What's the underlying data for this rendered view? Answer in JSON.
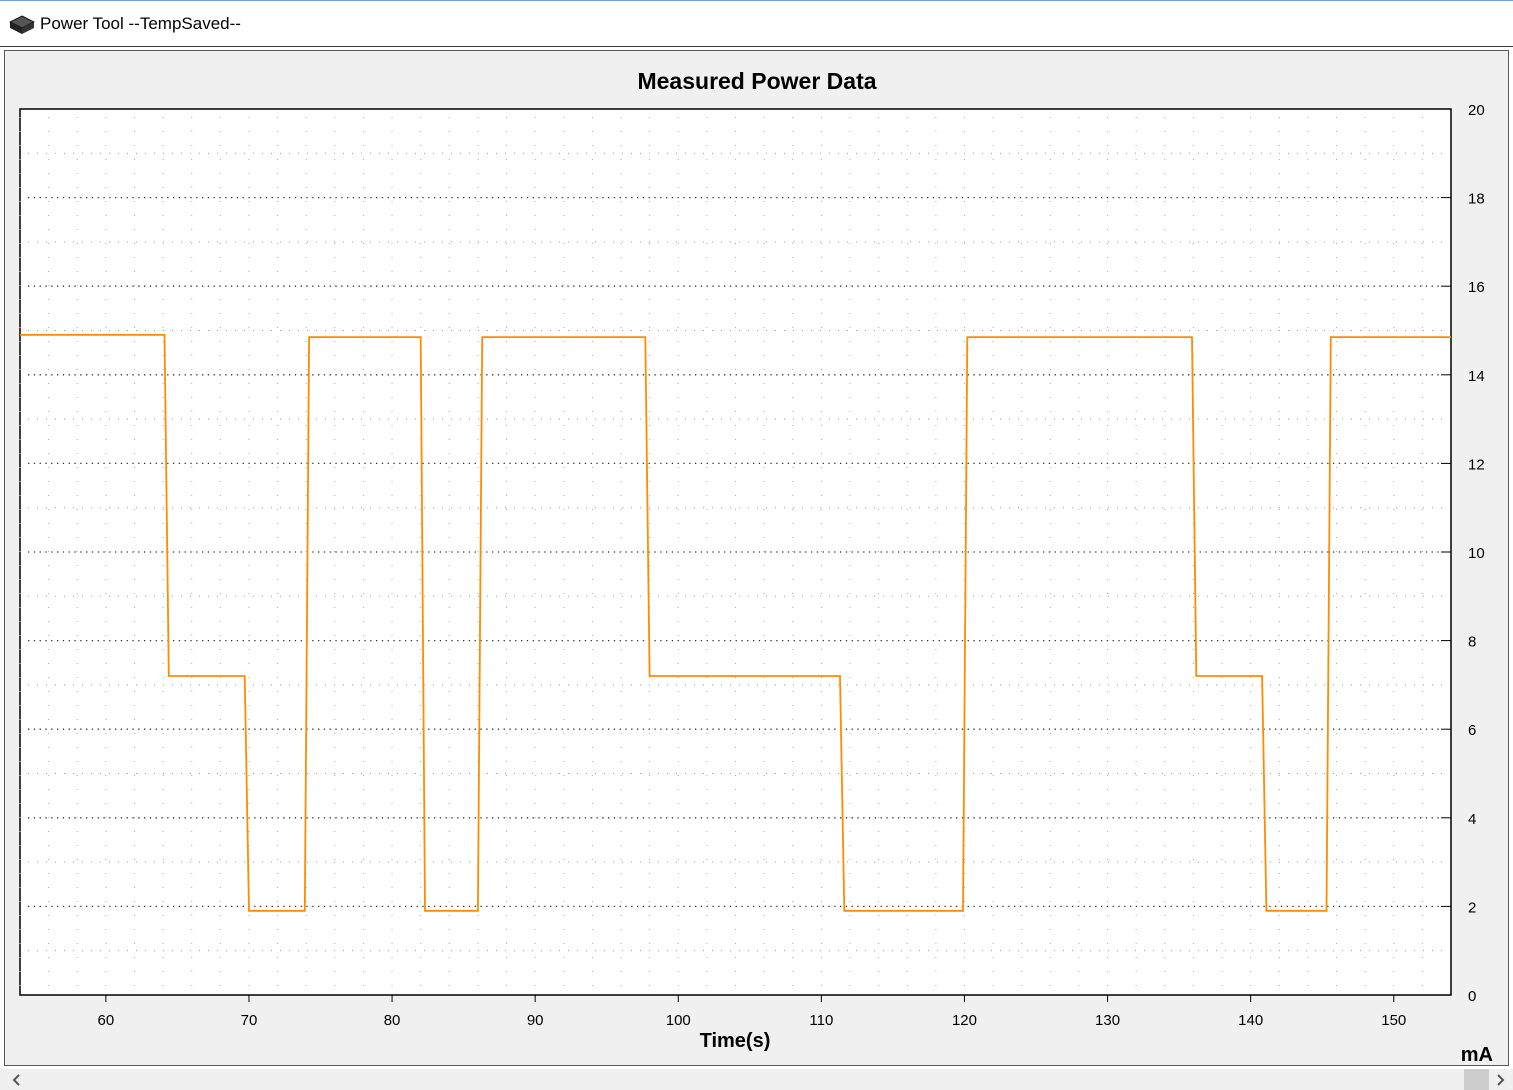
{
  "window": {
    "title": "Power Tool --TempSaved--",
    "icon": "chip-icon"
  },
  "chart_data": {
    "type": "line",
    "title": "Measured Power Data",
    "xlabel": "Time(s)",
    "ylabel": "mA",
    "xlim": [
      54,
      154
    ],
    "ylim": [
      0,
      20
    ],
    "x_ticks": [
      60,
      70,
      80,
      90,
      100,
      110,
      120,
      130,
      140,
      150
    ],
    "y_ticks": [
      0,
      2,
      4,
      6,
      8,
      10,
      12,
      14,
      16,
      18,
      20
    ],
    "y_axis_side": "right",
    "grid": "dotted",
    "series": [
      {
        "color": "#ff8c00",
        "x": [
          54,
          64.1,
          64.4,
          69.7,
          70.0,
          73.9,
          74.2,
          82.0,
          82.3,
          86.0,
          86.3,
          97.7,
          98.0,
          111.3,
          111.6,
          119.9,
          120.2,
          135.9,
          136.2,
          140.8,
          141.1,
          145.3,
          145.6,
          154
        ],
        "y": [
          14.9,
          14.9,
          7.2,
          7.2,
          1.9,
          1.9,
          14.85,
          14.85,
          1.9,
          1.9,
          14.85,
          14.85,
          7.2,
          7.2,
          1.9,
          1.9,
          14.85,
          14.85,
          7.2,
          7.2,
          1.9,
          1.9,
          14.85,
          14.85
        ]
      }
    ]
  }
}
